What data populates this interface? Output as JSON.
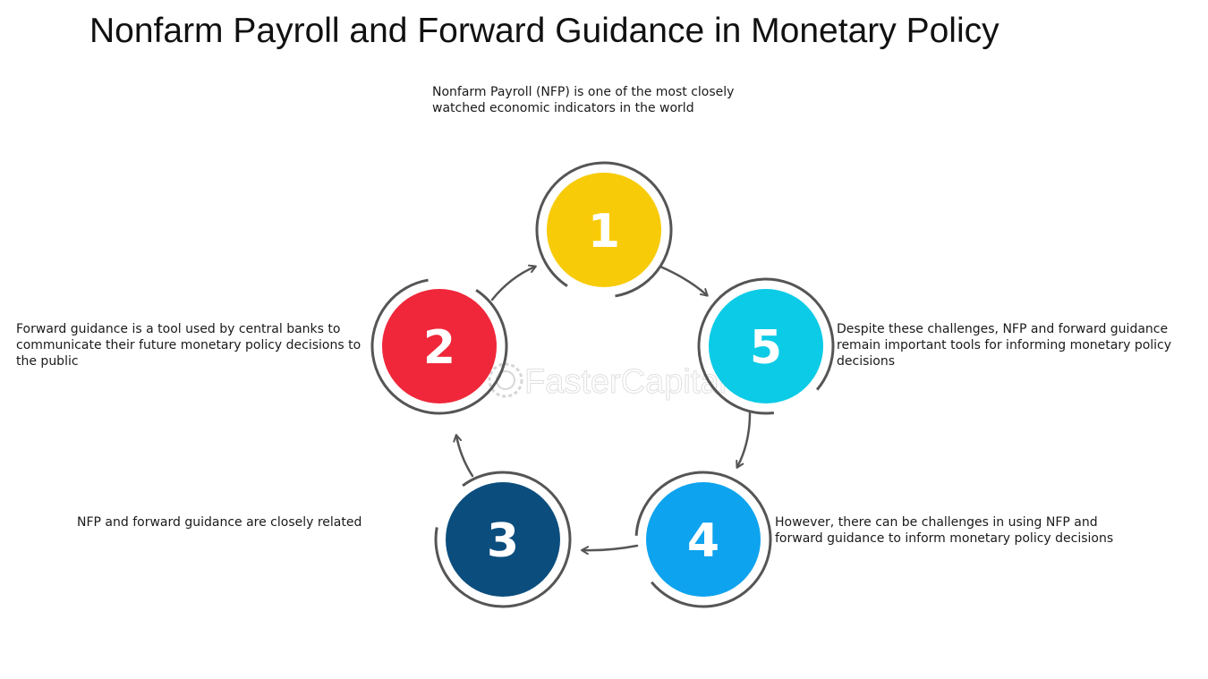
{
  "title": "Nonfarm Payroll and Forward Guidance in Monetary Policy",
  "steps": [
    {
      "number": "1",
      "color": "#F7CB08",
      "text": "Nonfarm Payroll (NFP) is one of the most closely watched economic indicators in the world"
    },
    {
      "number": "2",
      "color": "#F0273A",
      "text": "Forward guidance is a tool used by central banks to communicate their future monetary policy decisions to the public"
    },
    {
      "number": "3",
      "color": "#0B4E7E",
      "text": "NFP and forward guidance are closely related"
    },
    {
      "number": "4",
      "color": "#0EA3EE",
      "text": "However, there can be challenges in using NFP and forward guidance to inform monetary policy decisions"
    },
    {
      "number": "5",
      "color": "#0CCBE6",
      "text": "Despite these challenges, NFP and forward guidance remain important tools for informing monetary policy decisions"
    }
  ],
  "watermark": "FasterCapital",
  "ring_color": "#555555",
  "arrow_color": "#555555"
}
